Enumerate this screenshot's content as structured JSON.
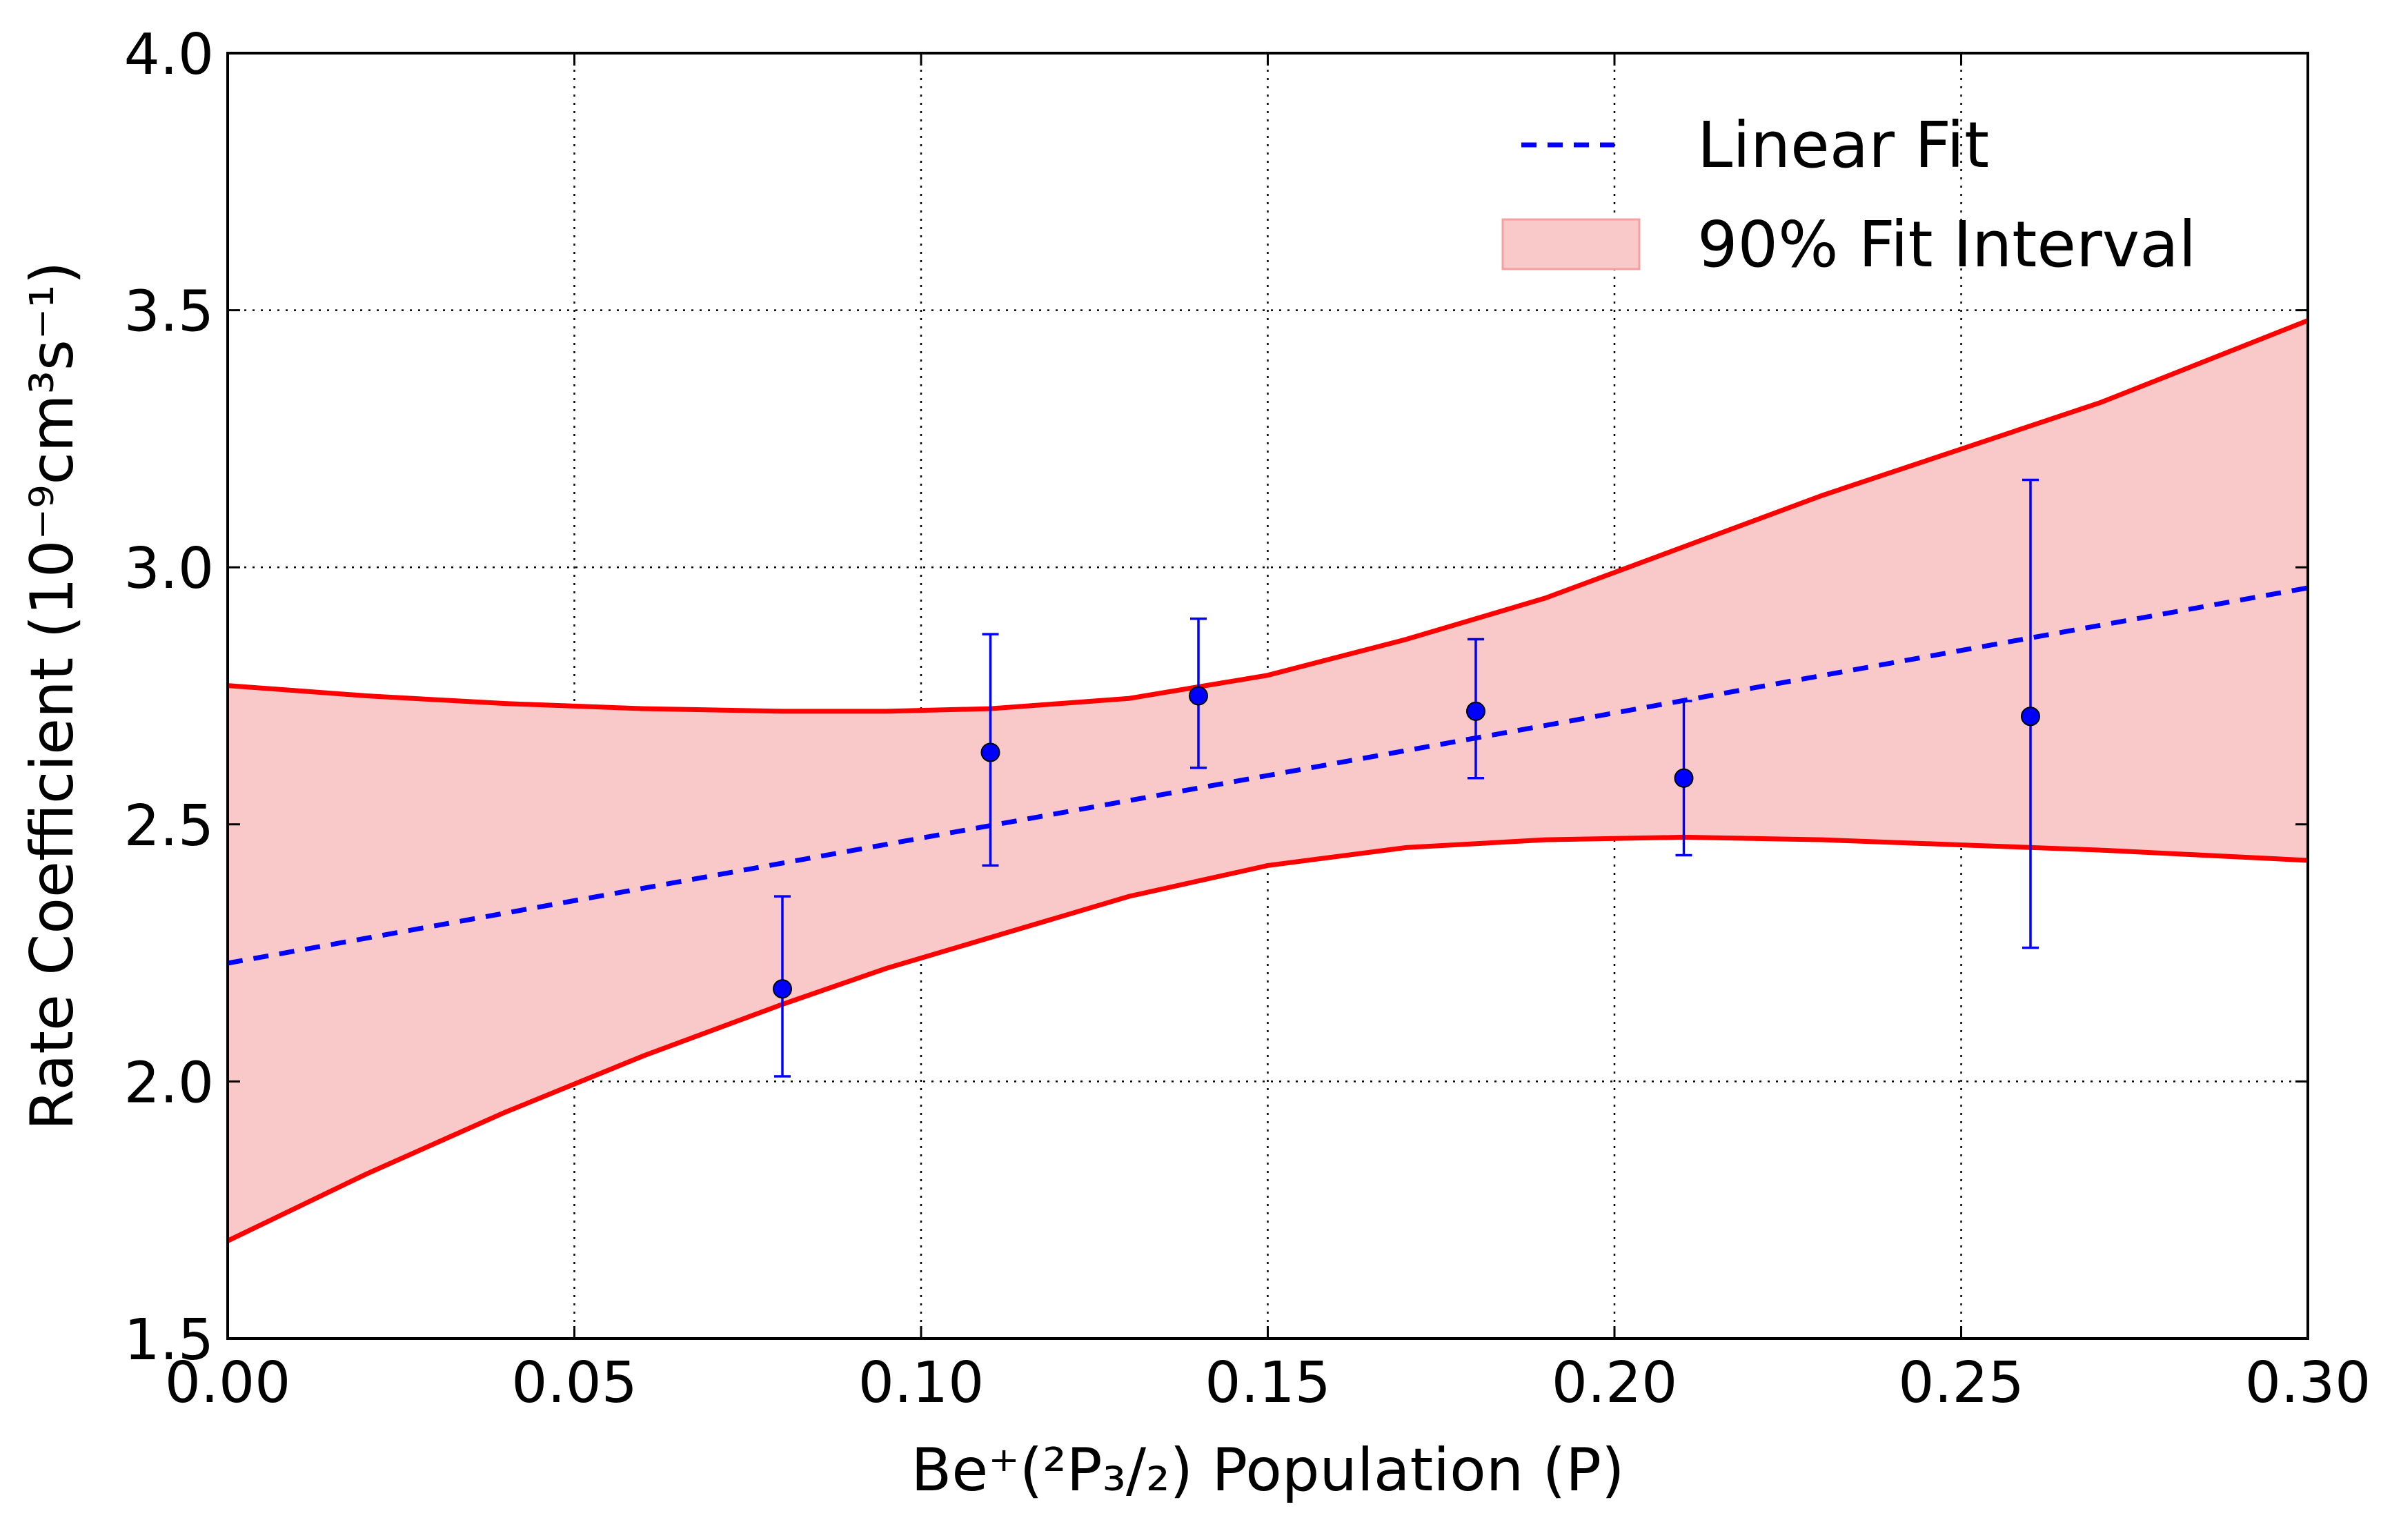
{
  "chart_data": {
    "type": "scatter",
    "xlabel": "Be⁺(²P₃/₂) Population (P)",
    "ylabel": "Rate Coefficient (10⁻⁹cm³s⁻¹)",
    "xlim": [
      0.0,
      0.3
    ],
    "ylim": [
      1.5,
      4.0
    ],
    "xticks": [
      "0.00",
      "0.05",
      "0.10",
      "0.15",
      "0.20",
      "0.25",
      "0.30"
    ],
    "yticks": [
      "1.5",
      "2.0",
      "2.5",
      "3.0",
      "3.5",
      "4.0"
    ],
    "grid": true,
    "legend_position": "top-right",
    "legend": [
      "Linear Fit",
      "90% Fit Interval"
    ],
    "colors": {
      "points": "#0000ff",
      "fit_line": "#0000ff",
      "interval_fill": "#f9c9c9",
      "interval_edge": "#ff0000"
    },
    "points": {
      "x": [
        0.08,
        0.11,
        0.14,
        0.18,
        0.21,
        0.26
      ],
      "y": [
        2.18,
        2.64,
        2.75,
        2.72,
        2.59,
        2.71
      ],
      "yerr_low": [
        0.17,
        0.22,
        0.14,
        0.13,
        0.15,
        0.45
      ],
      "yerr_high": [
        0.18,
        0.23,
        0.15,
        0.14,
        0.15,
        0.46
      ]
    },
    "linear_fit": {
      "x": [
        0.0,
        0.3
      ],
      "y": [
        2.23,
        2.96
      ]
    },
    "interval": {
      "x": [
        0.0,
        0.02,
        0.04,
        0.06,
        0.08,
        0.095,
        0.11,
        0.13,
        0.15,
        0.17,
        0.19,
        0.21,
        0.23,
        0.25,
        0.27,
        0.3
      ],
      "upper": [
        2.77,
        2.75,
        2.735,
        2.725,
        2.72,
        2.72,
        2.725,
        2.745,
        2.79,
        2.86,
        2.94,
        3.04,
        3.14,
        3.23,
        3.32,
        3.48
      ],
      "lower": [
        1.69,
        1.82,
        1.94,
        2.05,
        2.15,
        2.22,
        2.28,
        2.36,
        2.42,
        2.455,
        2.47,
        2.475,
        2.47,
        2.46,
        2.45,
        2.43
      ]
    }
  }
}
